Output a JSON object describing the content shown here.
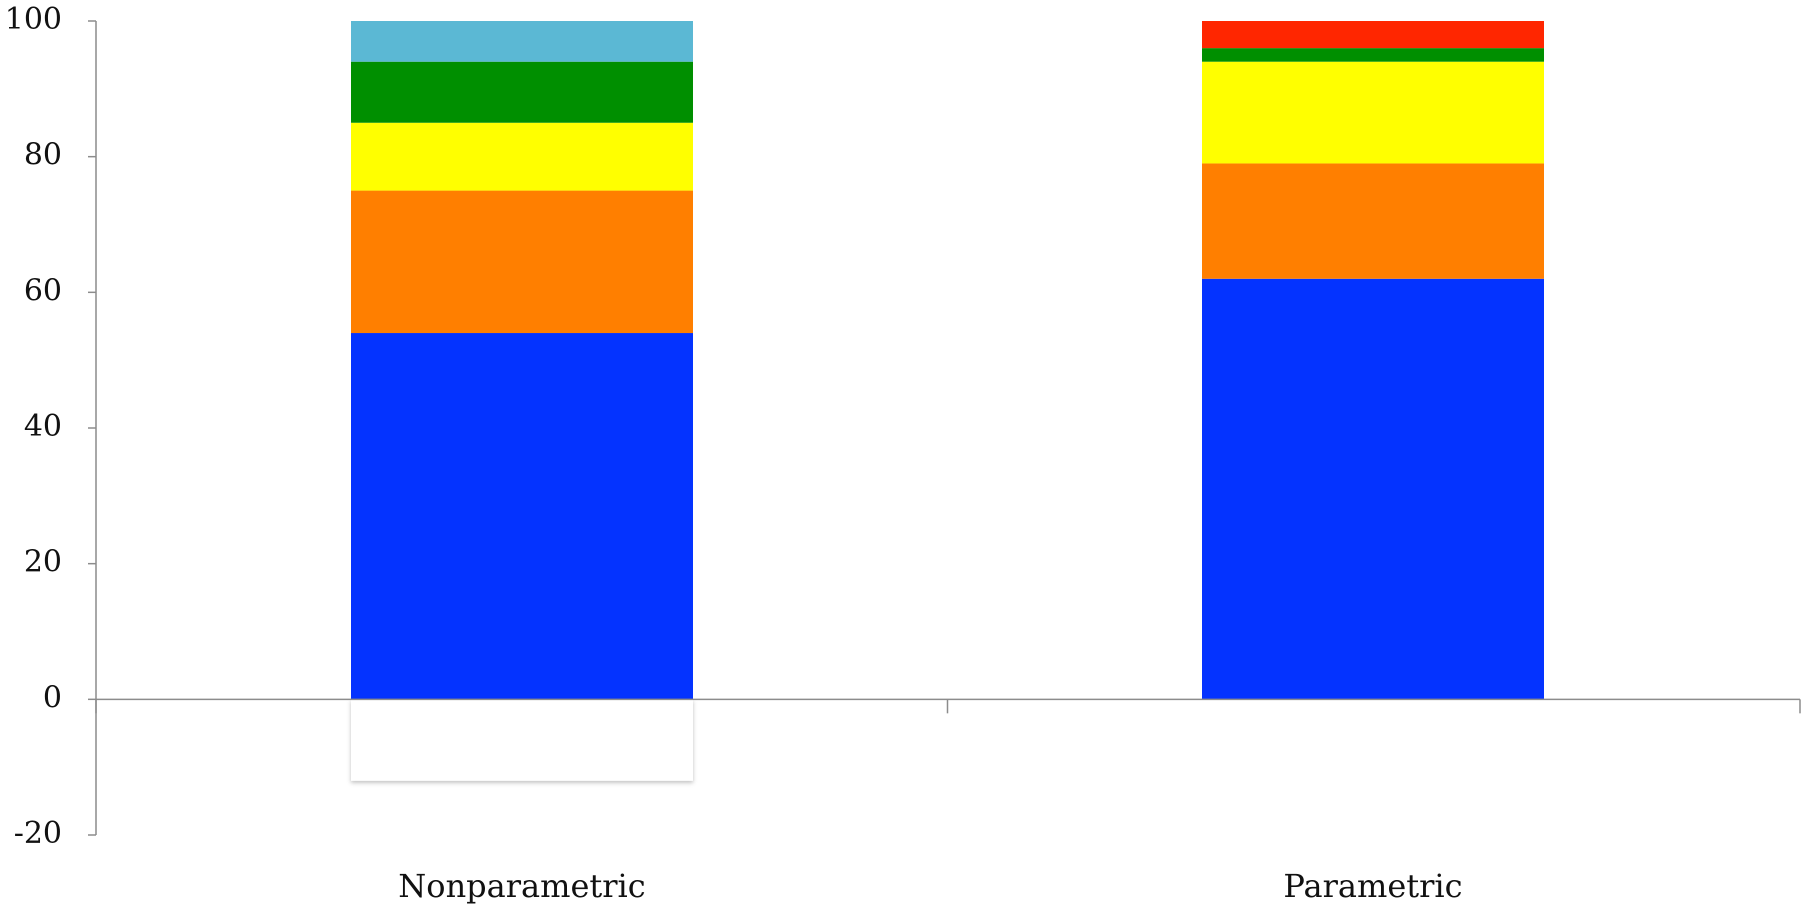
{
  "chart_data": {
    "type": "bar",
    "stacked": true,
    "title": "",
    "xlabel": "",
    "ylabel": "",
    "ylim": [
      -20,
      100
    ],
    "yticks": [
      -20,
      0,
      20,
      40,
      60,
      80,
      100
    ],
    "grid": false,
    "categories": [
      "Nonparametric",
      "Parametric"
    ],
    "series": [
      {
        "color": "#0433FF",
        "values": [
          54,
          62
        ]
      },
      {
        "color": "#FF7F00",
        "values": [
          21,
          17
        ]
      },
      {
        "color": "#FFFF00",
        "values": [
          10,
          15
        ]
      },
      {
        "color": "#008F00",
        "values": [
          9,
          2
        ]
      },
      {
        "color": "#5BB8D4",
        "values": [
          6,
          0
        ]
      },
      {
        "color": "#FF2600",
        "values": [
          0,
          4
        ]
      },
      {
        "color": "#FFFFFF",
        "values": [
          -12,
          0
        ]
      }
    ]
  }
}
